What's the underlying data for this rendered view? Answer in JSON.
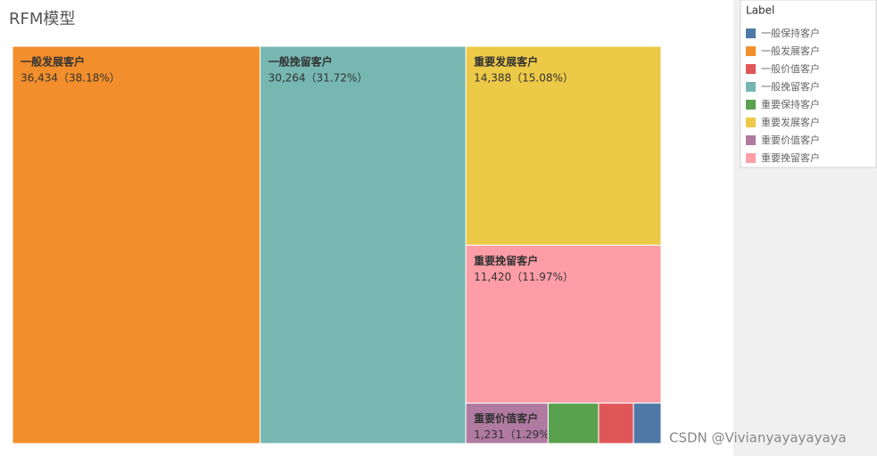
{
  "chart_data": {
    "type": "treemap",
    "title": "RFM模型",
    "legend_title": "Label",
    "categories": [
      "一般保持客户",
      "一般发展客户",
      "一般价值客户",
      "一般挽留客户",
      "重要保持客户",
      "重要发展客户",
      "重要价值客户",
      "重要挽留客户"
    ],
    "values": [
      413,
      36434,
      522,
      30264,
      755,
      14388,
      1231,
      11420
    ],
    "value_labels": [
      null,
      "36,434（38.18%）",
      null,
      "30,264（31.72%）",
      null,
      "14,388（15.08%）",
      "1,231（1.29%）",
      "11,420（11.97%）"
    ],
    "colors": [
      "#4e79a7",
      "#f28e2b",
      "#e15759",
      "#76b7b2",
      "#59a14f",
      "#edc948",
      "#b07aa1",
      "#ff9da7"
    ]
  },
  "watermark": "CSDN @Vivianyayayayaya"
}
